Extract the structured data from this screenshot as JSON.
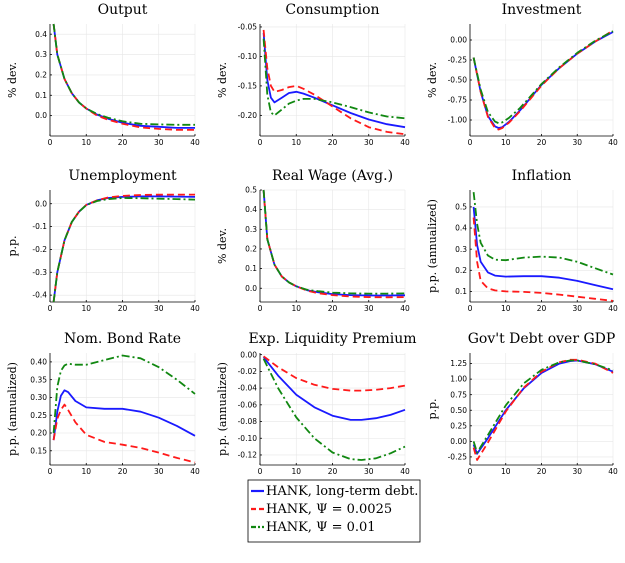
{
  "chart_data": [
    {
      "type": "line",
      "title": "Output",
      "ylabel": "% dev.",
      "xlim": [
        0,
        40
      ],
      "ylim": [
        -0.1,
        0.45
      ],
      "xticks": [
        0,
        10,
        20,
        30,
        40
      ],
      "yticks": [
        0.0,
        0.1,
        0.2,
        0.3,
        0.4
      ],
      "ytick_labels": [
        "0.0",
        "0.1",
        "0.2",
        "0.3",
        "0.4"
      ],
      "x": [
        1,
        2,
        4,
        6,
        8,
        10,
        13,
        16,
        20,
        25,
        30,
        35,
        40
      ],
      "series": [
        {
          "name": "long",
          "values": [
            0.45,
            0.3,
            0.18,
            0.11,
            0.065,
            0.035,
            0.005,
            -0.015,
            -0.035,
            -0.05,
            -0.055,
            -0.06,
            -0.06
          ]
        },
        {
          "name": "psi0025",
          "values": [
            0.45,
            0.3,
            0.18,
            0.11,
            0.065,
            0.035,
            0.0,
            -0.02,
            -0.04,
            -0.058,
            -0.065,
            -0.07,
            -0.07
          ]
        },
        {
          "name": "psi01",
          "values": [
            0.45,
            0.3,
            0.18,
            0.11,
            0.065,
            0.035,
            0.008,
            -0.01,
            -0.028,
            -0.04,
            -0.043,
            -0.045,
            -0.045
          ]
        }
      ]
    },
    {
      "type": "line",
      "title": "Consumption",
      "ylabel": "% dev.",
      "xlim": [
        0,
        40
      ],
      "ylim": [
        -0.235,
        -0.045
      ],
      "xticks": [
        0,
        10,
        20,
        30,
        40
      ],
      "yticks": [
        -0.05,
        -0.1,
        -0.15,
        -0.2
      ],
      "ytick_labels": [
        "-0.05",
        "-0.10",
        "-0.15",
        "-0.20"
      ],
      "x": [
        1,
        2,
        3,
        4,
        6,
        8,
        10,
        12,
        15,
        20,
        25,
        30,
        35,
        40
      ],
      "series": [
        {
          "name": "long",
          "values": [
            -0.06,
            -0.14,
            -0.17,
            -0.178,
            -0.17,
            -0.162,
            -0.16,
            -0.163,
            -0.17,
            -0.183,
            -0.196,
            -0.207,
            -0.215,
            -0.22
          ]
        },
        {
          "name": "psi0025",
          "values": [
            -0.055,
            -0.12,
            -0.15,
            -0.16,
            -0.157,
            -0.152,
            -0.15,
            -0.155,
            -0.165,
            -0.185,
            -0.205,
            -0.22,
            -0.228,
            -0.232
          ]
        },
        {
          "name": "psi01",
          "values": [
            -0.07,
            -0.165,
            -0.195,
            -0.2,
            -0.19,
            -0.18,
            -0.175,
            -0.172,
            -0.172,
            -0.178,
            -0.186,
            -0.195,
            -0.202,
            -0.205
          ]
        }
      ]
    },
    {
      "type": "line",
      "title": "Investment",
      "ylabel": "% dev.",
      "xlim": [
        0,
        40
      ],
      "ylim": [
        -1.2,
        0.2
      ],
      "xticks": [
        0,
        10,
        20,
        30,
        40
      ],
      "yticks": [
        0.0,
        -0.25,
        -0.5,
        -0.75,
        -1.0
      ],
      "ytick_labels": [
        "0.00",
        "-0.25",
        "-0.50",
        "-0.75",
        "-1.00"
      ],
      "x": [
        1,
        3,
        5,
        7,
        8,
        9,
        11,
        14,
        17,
        20,
        25,
        30,
        35,
        40
      ],
      "series": [
        {
          "name": "long",
          "values": [
            -0.22,
            -0.65,
            -0.95,
            -1.08,
            -1.1,
            -1.09,
            -1.02,
            -0.88,
            -0.72,
            -0.56,
            -0.35,
            -0.17,
            -0.02,
            0.1
          ]
        },
        {
          "name": "psi0025",
          "values": [
            -0.22,
            -0.65,
            -0.96,
            -1.1,
            -1.12,
            -1.1,
            -1.03,
            -0.89,
            -0.73,
            -0.57,
            -0.35,
            -0.17,
            -0.02,
            0.12
          ]
        },
        {
          "name": "psi01",
          "values": [
            -0.22,
            -0.62,
            -0.9,
            -1.02,
            -1.04,
            -1.03,
            -0.97,
            -0.85,
            -0.7,
            -0.55,
            -0.34,
            -0.16,
            -0.01,
            0.11
          ]
        }
      ]
    },
    {
      "type": "line",
      "title": "Unemployment",
      "ylabel": "p.p.",
      "xlim": [
        0,
        40
      ],
      "ylim": [
        -0.43,
        0.06
      ],
      "xticks": [
        0,
        10,
        20,
        30,
        40
      ],
      "yticks": [
        0.0,
        -0.1,
        -0.2,
        -0.3,
        -0.4
      ],
      "ytick_labels": [
        "0.0",
        "-0.1",
        "-0.2",
        "-0.3",
        "-0.4"
      ],
      "x": [
        1,
        2,
        4,
        6,
        8,
        10,
        13,
        16,
        20,
        25,
        30,
        35,
        40
      ],
      "series": [
        {
          "name": "long",
          "values": [
            -0.43,
            -0.3,
            -0.16,
            -0.08,
            -0.035,
            -0.005,
            0.015,
            0.025,
            0.03,
            0.032,
            0.032,
            0.031,
            0.03
          ]
        },
        {
          "name": "psi0025",
          "values": [
            -0.43,
            -0.3,
            -0.16,
            -0.08,
            -0.035,
            -0.005,
            0.015,
            0.027,
            0.034,
            0.038,
            0.04,
            0.04,
            0.04
          ]
        },
        {
          "name": "psi01",
          "values": [
            -0.43,
            -0.3,
            -0.16,
            -0.08,
            -0.035,
            -0.006,
            0.012,
            0.02,
            0.025,
            0.024,
            0.022,
            0.02,
            0.018
          ]
        }
      ]
    },
    {
      "type": "line",
      "title": "Real Wage (Avg.)",
      "ylabel": "% dev.",
      "xlim": [
        0,
        40
      ],
      "ylim": [
        -0.07,
        0.5
      ],
      "xticks": [
        0,
        10,
        20,
        30,
        40
      ],
      "yticks": [
        0.0,
        0.1,
        0.2,
        0.3,
        0.4,
        0.5
      ],
      "ytick_labels": [
        "0.0",
        "0.1",
        "0.2",
        "0.3",
        "0.4",
        "0.5"
      ],
      "x": [
        1,
        2,
        4,
        6,
        8,
        10,
        13,
        16,
        20,
        25,
        30,
        35,
        40
      ],
      "series": [
        {
          "name": "long",
          "values": [
            0.5,
            0.25,
            0.12,
            0.06,
            0.03,
            0.01,
            -0.01,
            -0.02,
            -0.03,
            -0.035,
            -0.037,
            -0.037,
            -0.036
          ]
        },
        {
          "name": "psi0025",
          "values": [
            0.5,
            0.25,
            0.12,
            0.06,
            0.03,
            0.01,
            -0.012,
            -0.025,
            -0.035,
            -0.042,
            -0.045,
            -0.046,
            -0.045
          ]
        },
        {
          "name": "psi01",
          "values": [
            0.5,
            0.25,
            0.12,
            0.06,
            0.03,
            0.01,
            -0.008,
            -0.015,
            -0.022,
            -0.026,
            -0.027,
            -0.027,
            -0.026
          ]
        }
      ]
    },
    {
      "type": "line",
      "title": "Inflation",
      "ylabel": "p.p. (annualized)",
      "xlim": [
        0,
        40
      ],
      "ylim": [
        0.05,
        0.58
      ],
      "xticks": [
        0,
        10,
        20,
        30,
        40
      ],
      "yticks": [
        0.1,
        0.2,
        0.3,
        0.4,
        0.5
      ],
      "ytick_labels": [
        "0.1",
        "0.2",
        "0.3",
        "0.4",
        "0.5"
      ],
      "x": [
        1,
        2,
        3,
        5,
        7,
        10,
        15,
        20,
        25,
        30,
        35,
        40
      ],
      "series": [
        {
          "name": "long",
          "values": [
            0.5,
            0.32,
            0.24,
            0.19,
            0.175,
            0.17,
            0.172,
            0.172,
            0.165,
            0.15,
            0.13,
            0.11
          ]
        },
        {
          "name": "psi0025",
          "values": [
            0.45,
            0.24,
            0.15,
            0.115,
            0.105,
            0.1,
            0.098,
            0.093,
            0.085,
            0.075,
            0.065,
            0.055
          ]
        },
        {
          "name": "psi01",
          "values": [
            0.57,
            0.42,
            0.33,
            0.27,
            0.25,
            0.248,
            0.26,
            0.265,
            0.26,
            0.24,
            0.21,
            0.18
          ]
        }
      ]
    },
    {
      "type": "line",
      "title": "Nom. Bond Rate",
      "ylabel": "p.p. (annualized)",
      "xlim": [
        0,
        40
      ],
      "ylim": [
        0.11,
        0.425
      ],
      "xticks": [
        0,
        10,
        20,
        30,
        40
      ],
      "yticks": [
        0.15,
        0.2,
        0.25,
        0.3,
        0.35,
        0.4
      ],
      "ytick_labels": [
        "0.15",
        "0.20",
        "0.25",
        "0.30",
        "0.35",
        "0.40"
      ],
      "x": [
        1,
        2,
        3,
        4,
        5,
        7,
        10,
        15,
        20,
        25,
        30,
        35,
        40
      ],
      "series": [
        {
          "name": "long",
          "values": [
            0.18,
            0.26,
            0.305,
            0.32,
            0.315,
            0.29,
            0.272,
            0.268,
            0.268,
            0.26,
            0.243,
            0.22,
            0.192
          ]
        },
        {
          "name": "psi0025",
          "values": [
            0.18,
            0.24,
            0.265,
            0.28,
            0.265,
            0.23,
            0.195,
            0.175,
            0.167,
            0.158,
            0.145,
            0.13,
            0.117
          ]
        },
        {
          "name": "psi01",
          "values": [
            0.2,
            0.33,
            0.375,
            0.39,
            0.395,
            0.392,
            0.392,
            0.405,
            0.418,
            0.41,
            0.385,
            0.35,
            0.31
          ]
        }
      ]
    },
    {
      "type": "line",
      "title": "Exp. Liquidity Premium",
      "ylabel": "p.p. (annualized)",
      "xlim": [
        0,
        40
      ],
      "ylim": [
        -0.132,
        0.002
      ],
      "xticks": [
        0,
        10,
        20,
        30,
        40
      ],
      "yticks": [
        0.0,
        -0.02,
        -0.04,
        -0.06,
        -0.08,
        -0.1,
        -0.12
      ],
      "ytick_labels": [
        "0.00",
        "-0.02",
        "-0.04",
        "-0.06",
        "-0.08",
        "-0.10",
        "-0.12"
      ],
      "x": [
        1,
        5,
        10,
        15,
        20,
        25,
        28,
        32,
        36,
        40
      ],
      "series": [
        {
          "name": "long",
          "values": [
            -0.003,
            -0.025,
            -0.048,
            -0.063,
            -0.073,
            -0.078,
            -0.078,
            -0.076,
            -0.072,
            -0.066
          ]
        },
        {
          "name": "psi0025",
          "values": [
            -0.002,
            -0.015,
            -0.028,
            -0.036,
            -0.041,
            -0.043,
            -0.043,
            -0.042,
            -0.04,
            -0.037
          ]
        },
        {
          "name": "psi01",
          "values": [
            -0.005,
            -0.04,
            -0.075,
            -0.1,
            -0.117,
            -0.125,
            -0.126,
            -0.124,
            -0.118,
            -0.11
          ]
        }
      ]
    },
    {
      "type": "line",
      "title": "Gov't Debt over GDP",
      "ylabel": "p.p.",
      "xlim": [
        0,
        40
      ],
      "ylim": [
        -0.38,
        1.42
      ],
      "xticks": [
        0,
        10,
        20,
        30,
        40
      ],
      "yticks": [
        -0.25,
        0.0,
        0.25,
        0.5,
        0.75,
        1.0,
        1.25
      ],
      "ytick_labels": [
        "-0.25",
        "0.00",
        "0.25",
        "0.50",
        "0.75",
        "1.00",
        "1.25"
      ],
      "x": [
        1,
        2,
        5,
        10,
        15,
        20,
        25,
        28,
        30,
        35,
        40
      ],
      "series": [
        {
          "name": "long",
          "values": [
            -0.05,
            -0.2,
            0.05,
            0.5,
            0.85,
            1.1,
            1.25,
            1.29,
            1.3,
            1.24,
            1.12
          ]
        },
        {
          "name": "psi0025",
          "values": [
            -0.1,
            -0.3,
            -0.02,
            0.48,
            0.86,
            1.12,
            1.27,
            1.31,
            1.31,
            1.25,
            1.1
          ]
        },
        {
          "name": "psi01",
          "values": [
            0.0,
            -0.18,
            0.1,
            0.58,
            0.93,
            1.15,
            1.27,
            1.3,
            1.3,
            1.24,
            1.14
          ]
        }
      ]
    }
  ],
  "legend": {
    "entries": [
      {
        "label": "HANK, long-term debt.",
        "color": "#0000ff",
        "dash": "solid"
      },
      {
        "label": "HANK, Ψ = 0.0025",
        "color": "#ff0000",
        "dash": "dashed"
      },
      {
        "label": "HANK, Ψ = 0.01",
        "color": "#008000",
        "dash": "dashdot"
      }
    ]
  },
  "colors": {
    "long": "#1a1aff",
    "psi0025": "#ff1a1a",
    "psi01": "#118811"
  }
}
